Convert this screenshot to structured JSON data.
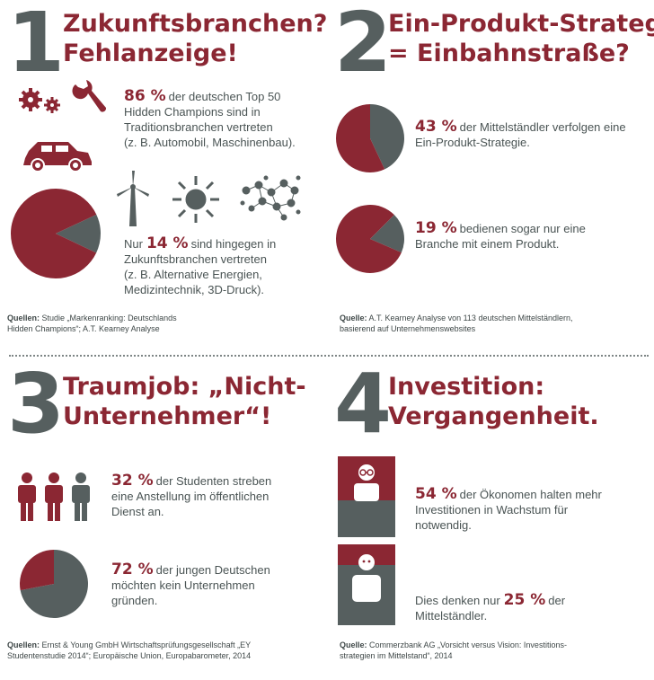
{
  "colors": {
    "red": "#8b2733",
    "gray": "#565f5f",
    "text": "#4a5454"
  },
  "s1": {
    "number": "1",
    "title": [
      "Zukunftsbranchen?",
      "Fehlanzeige!"
    ],
    "stat1": {
      "pct": "86 %",
      "lines": [
        "der deutschen Top 50",
        "Hidden Champions sind in",
        "Traditionsbranchen vertreten",
        "(z. B. Automobil, Maschinenbau)."
      ]
    },
    "stat2": {
      "prefix": "Nur",
      "pct": "14 %",
      "first": "sind hingegen in",
      "lines": [
        "Zukunftsbranchen vertreten",
        "(z. B. Alternative Energien,",
        "Medizintechnik, 3D-Druck)."
      ]
    },
    "pie": {
      "red": 86,
      "gray": 14
    },
    "icons": [
      "gear-icon",
      "wrench-icon",
      "car-icon",
      "wind-turbine-icon",
      "sun-icon",
      "molecule-icon"
    ],
    "source": {
      "label": "Quellen:",
      "lines": [
        "Studie „Markenranking: Deutschlands",
        "Hidden Champions“; A.T. Kearney Analyse"
      ]
    }
  },
  "s2": {
    "number": "2",
    "title": [
      "Ein-Produkt-Strategie",
      "= Einbahnstraße?"
    ],
    "stat1": {
      "pct": "43 %",
      "lines": [
        "der Mittelständler verfolgen eine",
        "Ein-Produkt-Strategie."
      ]
    },
    "stat2": {
      "pct": "19 %",
      "lines": [
        "bedienen sogar nur eine",
        "Branche mit einem Produkt."
      ]
    },
    "pie1": {
      "red": 57,
      "gray": 43
    },
    "pie2": {
      "red": 81,
      "gray": 19
    },
    "source": {
      "label": "Quelle:",
      "lines": [
        "A.T. Kearney Analyse von 113 deutschen Mittelständlern,",
        "basierend auf Unternehmenswebsites"
      ]
    }
  },
  "s3": {
    "number": "3",
    "title": [
      "Traumjob: „Nicht-",
      "Unternehmer“!"
    ],
    "stat1": {
      "pct": "32 %",
      "lines": [
        "der Studenten streben",
        "eine Anstellung im öffentlichen",
        "Dienst an."
      ]
    },
    "stat2": {
      "pct": "72 %",
      "lines": [
        "der jungen Deutschen",
        "möchten kein Unternehmen",
        "gründen."
      ]
    },
    "pie": {
      "red": 28,
      "gray": 72
    },
    "source": {
      "label": "Quellen:",
      "lines": [
        "Ernst & Young GmbH Wirtschaftsprüfungsgesellschaft „EY",
        "Studentenstudie 2014“; Europäische Union, Europabarometer, 2014"
      ]
    }
  },
  "s4": {
    "number": "4",
    "title": [
      "Investition:",
      "Vergangenheit."
    ],
    "stat1": {
      "pct": "54 %",
      "lines": [
        "der Ökonomen halten mehr",
        "Investitionen in Wachstum für",
        "notwendig."
      ]
    },
    "stat2": {
      "prefix": "Dies denken nur",
      "pct": "25 %",
      "first": "der",
      "lines": [
        "Mittelständler."
      ]
    },
    "bars": {
      "economists": 54,
      "midsize": 25
    },
    "source": {
      "label": "Quelle:",
      "lines": [
        "Commerzbank AG „Vorsicht versus Vision: Investitions-",
        "strategien im Mittelstand“, 2014"
      ]
    }
  }
}
